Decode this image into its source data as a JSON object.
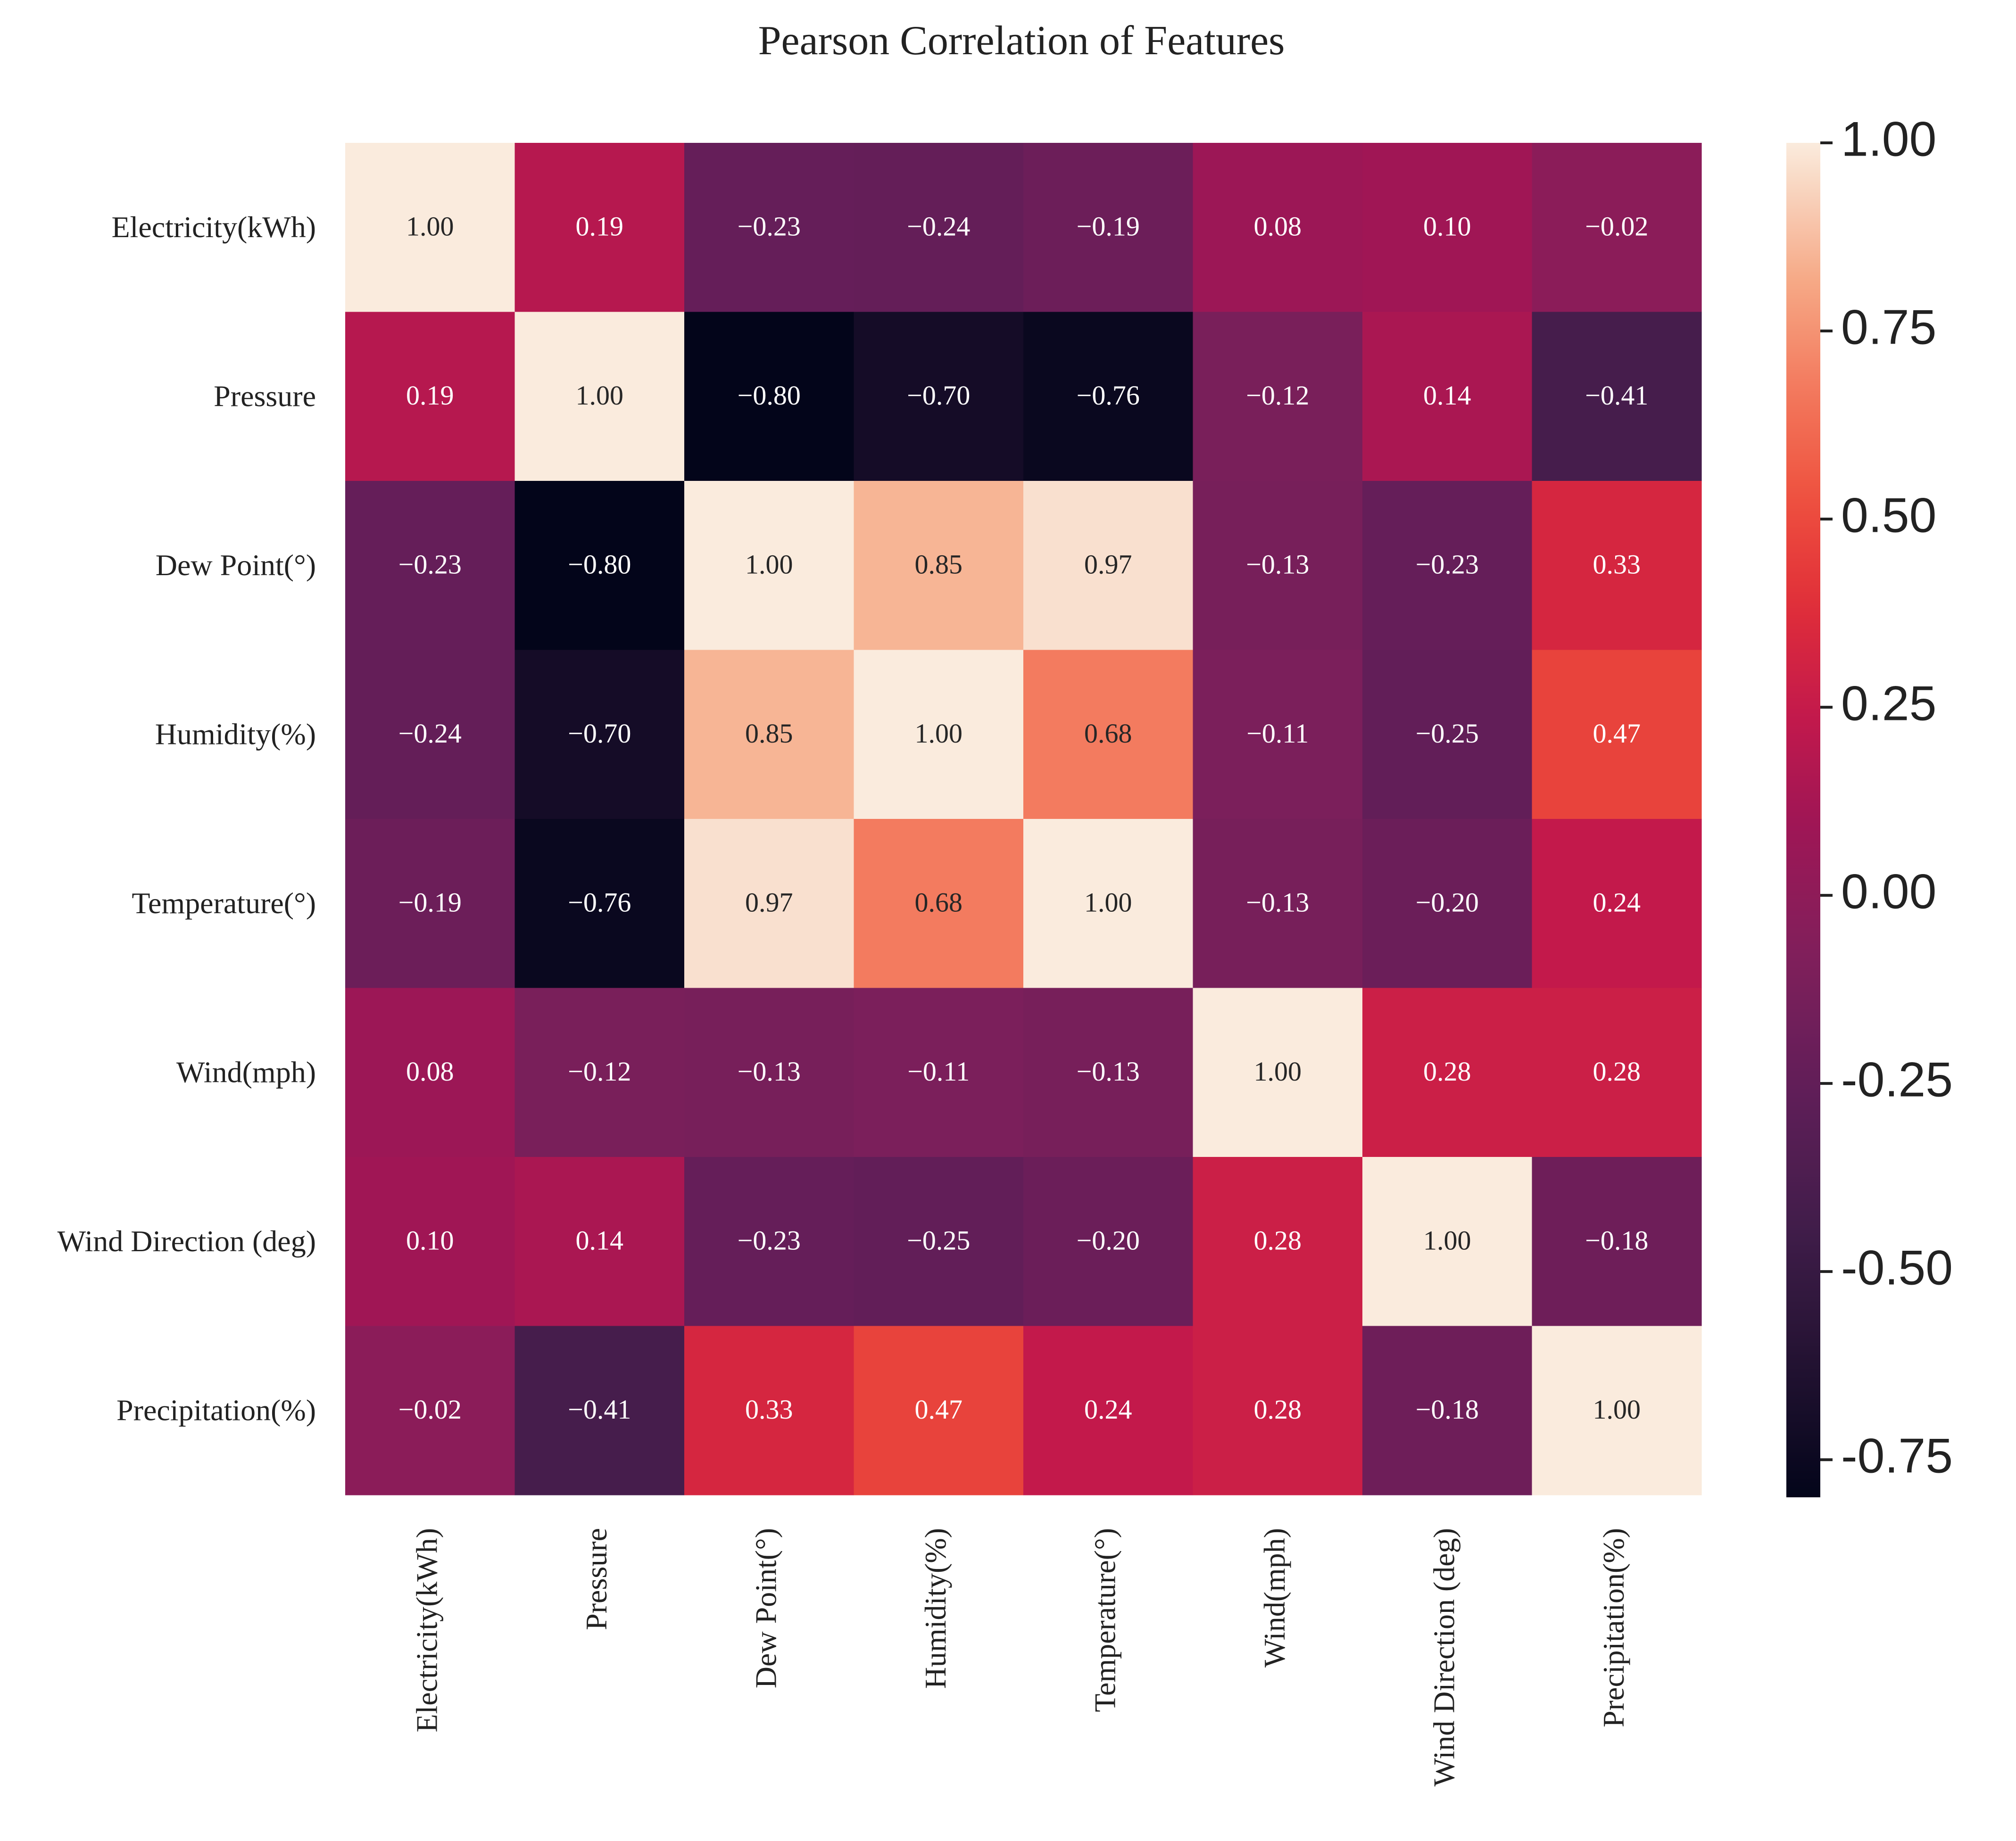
{
  "chart_data": {
    "type": "heatmap",
    "title": "Pearson Correlation of Features",
    "row_labels": [
      "Electricity(kWh)",
      "Pressure",
      "Dew Point(°)",
      "Humidity(%)",
      "Temperature(°)",
      "Wind(mph)",
      "Wind Direction (deg)",
      "Precipitation(%)"
    ],
    "col_labels": [
      "Electricity(kWh)",
      "Pressure",
      "Dew Point(°)",
      "Humidity(%)",
      "Temperature(°)",
      "Wind(mph)",
      "Wind Direction (deg)",
      "Precipitation(%)"
    ],
    "values": [
      [
        1.0,
        0.19,
        -0.23,
        -0.24,
        -0.19,
        0.08,
        0.1,
        -0.02
      ],
      [
        0.19,
        1.0,
        -0.8,
        -0.7,
        -0.76,
        -0.12,
        0.14,
        -0.41
      ],
      [
        -0.23,
        -0.8,
        1.0,
        0.85,
        0.97,
        -0.13,
        -0.23,
        0.33
      ],
      [
        -0.24,
        -0.7,
        0.85,
        1.0,
        0.68,
        -0.11,
        -0.25,
        0.47
      ],
      [
        -0.19,
        -0.76,
        0.97,
        0.68,
        1.0,
        -0.13,
        -0.2,
        0.24
      ],
      [
        0.08,
        -0.12,
        -0.13,
        -0.11,
        -0.13,
        1.0,
        0.28,
        0.28
      ],
      [
        0.1,
        0.14,
        -0.23,
        -0.25,
        -0.2,
        0.28,
        1.0,
        -0.18
      ],
      [
        -0.02,
        -0.41,
        0.33,
        0.47,
        0.24,
        0.28,
        -0.18,
        1.0
      ]
    ],
    "value_format": "2 decimals, minus sign as −",
    "colormap": "rocket",
    "colorbar": {
      "vmin": -0.8,
      "vmax": 1.0,
      "ticks": [
        1.0,
        0.75,
        0.5,
        0.25,
        0.0,
        -0.25,
        -0.5,
        -0.75
      ],
      "tick_labels": [
        "1.00",
        "0.75",
        "0.50",
        "0.25",
        "0.00",
        "-0.25",
        "-0.50",
        "-0.75"
      ],
      "position": "right"
    }
  }
}
